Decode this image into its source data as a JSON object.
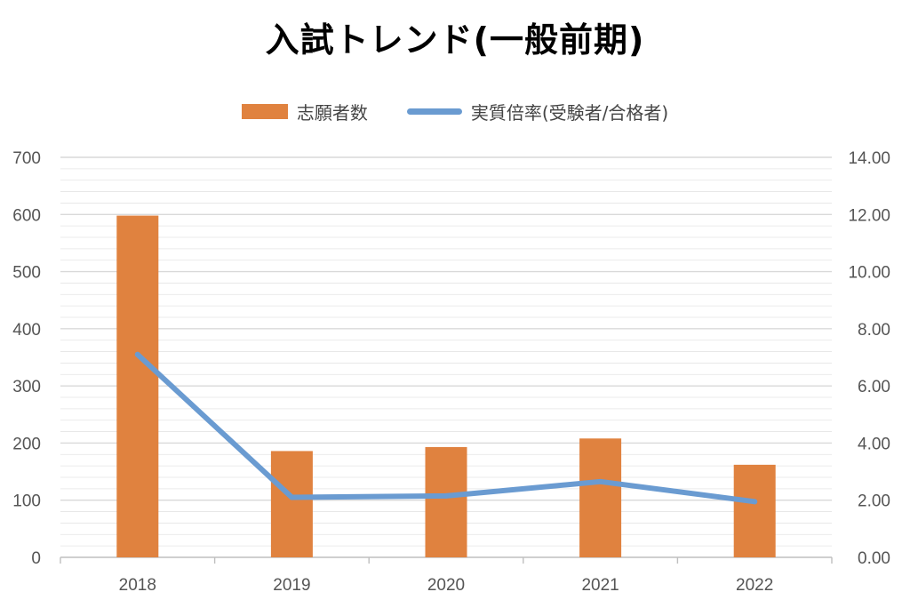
{
  "chart_data": {
    "type": "bar+line",
    "title": "入試トレンド(一般前期)",
    "categories": [
      "2018",
      "2019",
      "2020",
      "2021",
      "2022"
    ],
    "series": [
      {
        "name": "志願者数",
        "type": "bar",
        "axis": "left",
        "values": [
          598,
          186,
          193,
          208,
          162
        ]
      },
      {
        "name": "実質倍率(受験者/合格者)",
        "type": "line",
        "axis": "right",
        "values": [
          7.1,
          2.1,
          2.15,
          2.65,
          1.95
        ]
      }
    ],
    "y_left": {
      "ylim": [
        0,
        700
      ],
      "ticks": [
        "0",
        "100",
        "200",
        "300",
        "400",
        "500",
        "600",
        "700"
      ]
    },
    "y_right": {
      "ylim": [
        0,
        14
      ],
      "ticks": [
        "0.00",
        "2.00",
        "4.00",
        "6.00",
        "8.00",
        "10.00",
        "12.00",
        "14.00"
      ]
    },
    "grid": true,
    "legend_position": "top",
    "colors": {
      "bar": "#E0823F",
      "line": "#6A9BD1",
      "grid": "#D9D9D9",
      "axis": "#BFBFBF"
    }
  }
}
